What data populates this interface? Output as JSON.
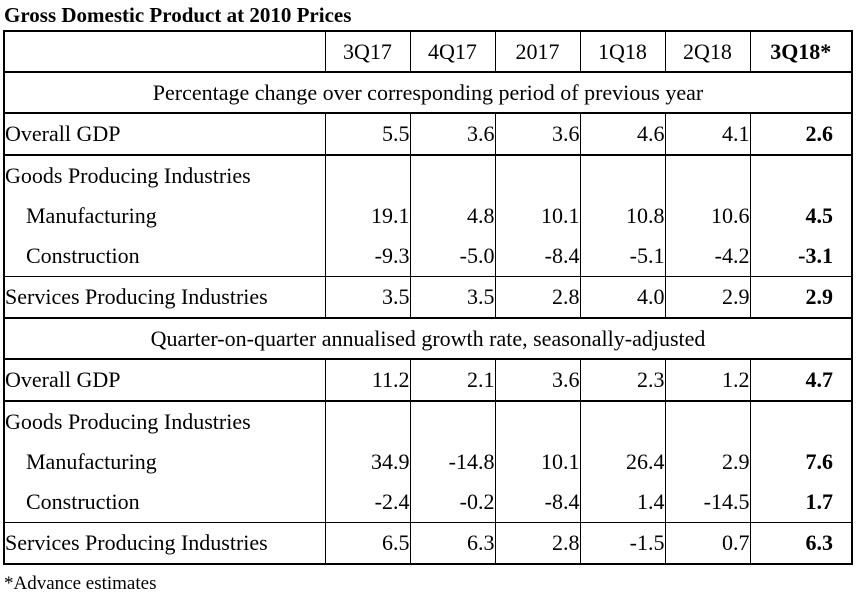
{
  "title": "Gross Domestic Product at 2010 Prices",
  "columns": [
    "3Q17",
    "4Q17",
    "2017",
    "1Q18",
    "2Q18",
    "3Q18*"
  ],
  "sections": [
    {
      "heading": "Percentage change over corresponding period of previous year",
      "rows": [
        {
          "label": "Overall GDP",
          "values": [
            "5.5",
            "3.6",
            "3.6",
            "4.6",
            "4.1",
            "2.6"
          ]
        },
        {
          "label": "Goods Producing Industries",
          "values": [
            "",
            "",
            "",
            "",
            "",
            ""
          ]
        },
        {
          "label": "Manufacturing",
          "values": [
            "19.1",
            "4.8",
            "10.1",
            "10.8",
            "10.6",
            "4.5"
          ]
        },
        {
          "label": "Construction",
          "values": [
            "-9.3",
            "-5.0",
            "-8.4",
            "-5.1",
            "-4.2",
            "-3.1"
          ]
        },
        {
          "label": "Services Producing Industries",
          "values": [
            "3.5",
            "3.5",
            "2.8",
            "4.0",
            "2.9",
            "2.9"
          ]
        }
      ]
    },
    {
      "heading": "Quarter-on-quarter annualised growth rate, seasonally-adjusted",
      "rows": [
        {
          "label": "Overall GDP",
          "values": [
            "11.2",
            "2.1",
            "3.6",
            "2.3",
            "1.2",
            "4.7"
          ]
        },
        {
          "label": "Goods Producing Industries",
          "values": [
            "",
            "",
            "",
            "",
            "",
            ""
          ]
        },
        {
          "label": "Manufacturing",
          "values": [
            "34.9",
            "-14.8",
            "10.1",
            "26.4",
            "2.9",
            "7.6"
          ]
        },
        {
          "label": "Construction",
          "values": [
            "-2.4",
            "-0.2",
            "-8.4",
            "1.4",
            "-14.5",
            "1.7"
          ]
        },
        {
          "label": "Services Producing Industries",
          "values": [
            "6.5",
            "6.3",
            "2.8",
            "-1.5",
            "0.7",
            "6.3"
          ]
        }
      ]
    }
  ],
  "footnote": "*Advance estimates"
}
